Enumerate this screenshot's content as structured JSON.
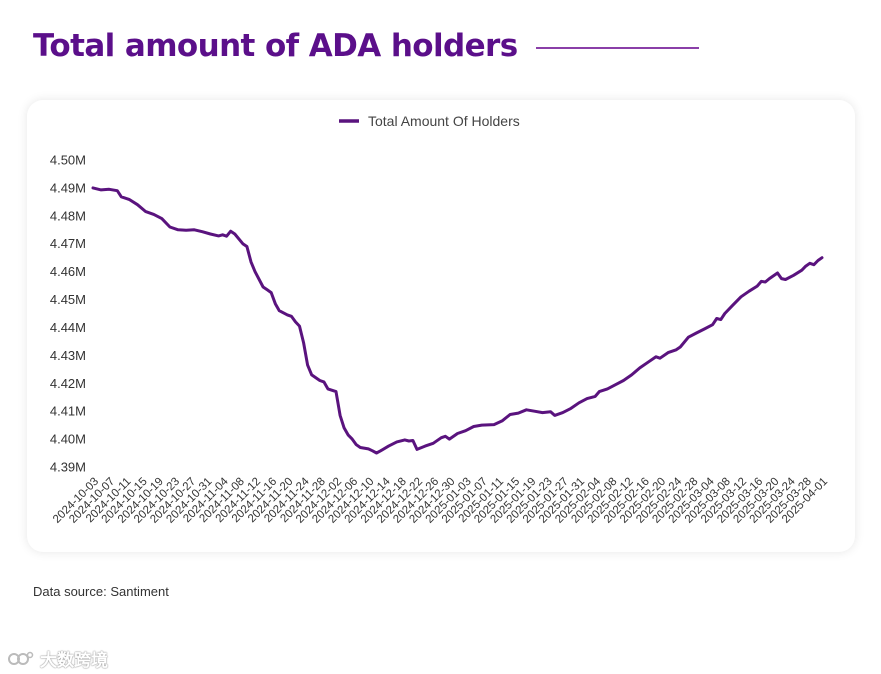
{
  "header": {
    "title": "Total amount of ADA holders"
  },
  "footer": {
    "source": "Data source: Santiment",
    "watermark": "大数跨境"
  },
  "colors": {
    "brand": "#5b0f8a",
    "line": "#5a137e"
  },
  "chart_data": {
    "type": "line",
    "title": "Total amount of ADA holders",
    "xlabel": "",
    "ylabel": "",
    "ylim": [
      4.385,
      4.5
    ],
    "legend": "top-center",
    "grid": false,
    "series_name": "Total Amount Of Holders",
    "y_ticks": [
      {
        "value": 4.39,
        "label": "4.39M"
      },
      {
        "value": 4.4,
        "label": "4.40M"
      },
      {
        "value": 4.41,
        "label": "4.41M"
      },
      {
        "value": 4.42,
        "label": "4.42M"
      },
      {
        "value": 4.43,
        "label": "4.43M"
      },
      {
        "value": 4.44,
        "label": "4.44M"
      },
      {
        "value": 4.45,
        "label": "4.45M"
      },
      {
        "value": 4.46,
        "label": "4.46M"
      },
      {
        "value": 4.47,
        "label": "4.47M"
      },
      {
        "value": 4.48,
        "label": "4.48M"
      },
      {
        "value": 4.49,
        "label": "4.49M"
      },
      {
        "value": 4.5,
        "label": "4.50M"
      }
    ],
    "x_start": "2024-10-03",
    "x_end": "2025-04-01",
    "x_tick_labels": [
      "2024-10-03",
      "2024-10-07",
      "2024-10-11",
      "2024-10-15",
      "2024-10-19",
      "2024-10-23",
      "2024-10-27",
      "2024-10-31",
      "2024-11-04",
      "2024-11-08",
      "2024-11-12",
      "2024-11-16",
      "2024-11-20",
      "2024-11-24",
      "2024-11-28",
      "2024-12-02",
      "2024-12-06",
      "2024-12-10",
      "2024-12-14",
      "2024-12-18",
      "2024-12-22",
      "2024-12-26",
      "2024-12-30",
      "2025-01-03",
      "2025-01-07",
      "2025-01-11",
      "2025-01-15",
      "2025-01-19",
      "2025-01-23",
      "2025-01-27",
      "2025-01-31",
      "2025-02-04",
      "2025-02-08",
      "2025-02-12",
      "2025-02-16",
      "2025-02-20",
      "2025-02-24",
      "2025-02-28",
      "2025-03-04",
      "2025-03-08",
      "2025-03-12",
      "2025-03-16",
      "2025-03-20",
      "2025-03-24",
      "2025-03-28",
      "2025-04-01"
    ],
    "points": [
      {
        "x": "2024-10-03",
        "y": 4.49
      },
      {
        "x": "2024-10-05",
        "y": 4.4893
      },
      {
        "x": "2024-10-07",
        "y": 4.4895
      },
      {
        "x": "2024-10-09",
        "y": 4.489
      },
      {
        "x": "2024-10-10",
        "y": 4.4868
      },
      {
        "x": "2024-10-12",
        "y": 4.4858
      },
      {
        "x": "2024-10-14",
        "y": 4.484
      },
      {
        "x": "2024-10-16",
        "y": 4.4815
      },
      {
        "x": "2024-10-18",
        "y": 4.4805
      },
      {
        "x": "2024-10-20",
        "y": 4.479
      },
      {
        "x": "2024-10-22",
        "y": 4.476
      },
      {
        "x": "2024-10-24",
        "y": 4.475
      },
      {
        "x": "2024-10-26",
        "y": 4.4748
      },
      {
        "x": "2024-10-28",
        "y": 4.475
      },
      {
        "x": "2024-10-30",
        "y": 4.4743
      },
      {
        "x": "2024-11-01",
        "y": 4.4735
      },
      {
        "x": "2024-11-03",
        "y": 4.4728
      },
      {
        "x": "2024-11-04",
        "y": 4.4732
      },
      {
        "x": "2024-11-05",
        "y": 4.4727
      },
      {
        "x": "2024-11-06",
        "y": 4.4745
      },
      {
        "x": "2024-11-07",
        "y": 4.4735
      },
      {
        "x": "2024-11-09",
        "y": 4.47
      },
      {
        "x": "2024-11-10",
        "y": 4.469
      },
      {
        "x": "2024-11-11",
        "y": 4.4635
      },
      {
        "x": "2024-11-12",
        "y": 4.46
      },
      {
        "x": "2024-11-14",
        "y": 4.4545
      },
      {
        "x": "2024-11-15",
        "y": 4.4535
      },
      {
        "x": "2024-11-16",
        "y": 4.4525
      },
      {
        "x": "2024-11-17",
        "y": 4.4485
      },
      {
        "x": "2024-11-18",
        "y": 4.446
      },
      {
        "x": "2024-11-20",
        "y": 4.4445
      },
      {
        "x": "2024-11-21",
        "y": 4.444
      },
      {
        "x": "2024-11-22",
        "y": 4.442
      },
      {
        "x": "2024-11-23",
        "y": 4.4405
      },
      {
        "x": "2024-11-24",
        "y": 4.4345
      },
      {
        "x": "2024-11-25",
        "y": 4.4265
      },
      {
        "x": "2024-11-26",
        "y": 4.423
      },
      {
        "x": "2024-11-28",
        "y": 4.421
      },
      {
        "x": "2024-11-29",
        "y": 4.4205
      },
      {
        "x": "2024-11-30",
        "y": 4.418
      },
      {
        "x": "2024-12-02",
        "y": 4.417
      },
      {
        "x": "2024-12-03",
        "y": 4.4085
      },
      {
        "x": "2024-12-04",
        "y": 4.404
      },
      {
        "x": "2024-12-05",
        "y": 4.4015
      },
      {
        "x": "2024-12-06",
        "y": 4.4
      },
      {
        "x": "2024-12-07",
        "y": 4.398
      },
      {
        "x": "2024-12-08",
        "y": 4.397
      },
      {
        "x": "2024-12-10",
        "y": 4.3965
      },
      {
        "x": "2024-12-11",
        "y": 4.3958
      },
      {
        "x": "2024-12-12",
        "y": 4.395
      },
      {
        "x": "2024-12-13",
        "y": 4.3958
      },
      {
        "x": "2024-12-15",
        "y": 4.3975
      },
      {
        "x": "2024-12-17",
        "y": 4.399
      },
      {
        "x": "2024-12-19",
        "y": 4.3997
      },
      {
        "x": "2024-12-20",
        "y": 4.3993
      },
      {
        "x": "2024-12-21",
        "y": 4.3995
      },
      {
        "x": "2024-12-22",
        "y": 4.3963
      },
      {
        "x": "2024-12-24",
        "y": 4.3975
      },
      {
        "x": "2024-12-26",
        "y": 4.3985
      },
      {
        "x": "2024-12-28",
        "y": 4.4005
      },
      {
        "x": "2024-12-29",
        "y": 4.401
      },
      {
        "x": "2024-12-30",
        "y": 4.4
      },
      {
        "x": "2025-01-01",
        "y": 4.402
      },
      {
        "x": "2025-01-03",
        "y": 4.403
      },
      {
        "x": "2025-01-05",
        "y": 4.4045
      },
      {
        "x": "2025-01-07",
        "y": 4.405
      },
      {
        "x": "2025-01-10",
        "y": 4.4052
      },
      {
        "x": "2025-01-12",
        "y": 4.4065
      },
      {
        "x": "2025-01-14",
        "y": 4.4088
      },
      {
        "x": "2025-01-16",
        "y": 4.4093
      },
      {
        "x": "2025-01-18",
        "y": 4.4105
      },
      {
        "x": "2025-01-20",
        "y": 4.41
      },
      {
        "x": "2025-01-22",
        "y": 4.4095
      },
      {
        "x": "2025-01-24",
        "y": 4.4098
      },
      {
        "x": "2025-01-25",
        "y": 4.4085
      },
      {
        "x": "2025-01-27",
        "y": 4.4095
      },
      {
        "x": "2025-01-29",
        "y": 4.411
      },
      {
        "x": "2025-01-31",
        "y": 4.413
      },
      {
        "x": "2025-02-02",
        "y": 4.4145
      },
      {
        "x": "2025-02-04",
        "y": 4.4153
      },
      {
        "x": "2025-02-05",
        "y": 4.417
      },
      {
        "x": "2025-02-07",
        "y": 4.418
      },
      {
        "x": "2025-02-09",
        "y": 4.4195
      },
      {
        "x": "2025-02-11",
        "y": 4.421
      },
      {
        "x": "2025-02-13",
        "y": 4.423
      },
      {
        "x": "2025-02-15",
        "y": 4.4255
      },
      {
        "x": "2025-02-17",
        "y": 4.4275
      },
      {
        "x": "2025-02-19",
        "y": 4.4295
      },
      {
        "x": "2025-02-20",
        "y": 4.429
      },
      {
        "x": "2025-02-22",
        "y": 4.431
      },
      {
        "x": "2025-02-24",
        "y": 4.432
      },
      {
        "x": "2025-02-25",
        "y": 4.433
      },
      {
        "x": "2025-02-27",
        "y": 4.4365
      },
      {
        "x": "2025-03-01",
        "y": 4.438
      },
      {
        "x": "2025-03-03",
        "y": 4.4395
      },
      {
        "x": "2025-03-05",
        "y": 4.441
      },
      {
        "x": "2025-03-06",
        "y": 4.4432
      },
      {
        "x": "2025-03-07",
        "y": 4.4428
      },
      {
        "x": "2025-03-08",
        "y": 4.445
      },
      {
        "x": "2025-03-10",
        "y": 4.448
      },
      {
        "x": "2025-03-12",
        "y": 4.451
      },
      {
        "x": "2025-03-14",
        "y": 4.453
      },
      {
        "x": "2025-03-16",
        "y": 4.4548
      },
      {
        "x": "2025-03-17",
        "y": 4.4565
      },
      {
        "x": "2025-03-18",
        "y": 4.4563
      },
      {
        "x": "2025-03-19",
        "y": 4.4575
      },
      {
        "x": "2025-03-21",
        "y": 4.4595
      },
      {
        "x": "2025-03-22",
        "y": 4.4575
      },
      {
        "x": "2025-03-23",
        "y": 4.4572
      },
      {
        "x": "2025-03-25",
        "y": 4.4587
      },
      {
        "x": "2025-03-27",
        "y": 4.4605
      },
      {
        "x": "2025-03-28",
        "y": 4.462
      },
      {
        "x": "2025-03-29",
        "y": 4.463
      },
      {
        "x": "2025-03-30",
        "y": 4.4625
      },
      {
        "x": "2025-03-31",
        "y": 4.464
      },
      {
        "x": "2025-04-01",
        "y": 4.465
      }
    ]
  }
}
